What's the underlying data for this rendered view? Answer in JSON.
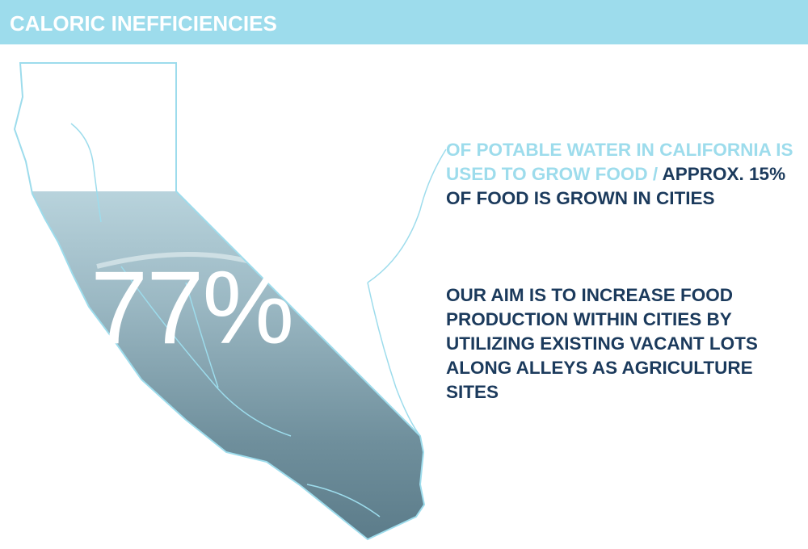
{
  "header": {
    "title": "CALORIC INEFFICIENCIES"
  },
  "figure": {
    "label": "77%"
  },
  "paragraphs": [
    {
      "highlight": "OF POTABLE WATER IN CALIFORNIA IS USED TO GROW FOOD /",
      "text": "APPROX. 15% OF FOOD IS GROWN IN CITIES"
    },
    {
      "text": "OUR AIM IS TO INCREASE FOOD PRODUCTION WITHIN CITIES BY UTILIZING EXISTING VACANT LOTS ALONG ALLEYS AS AGRICULTURE SITES"
    }
  ]
}
